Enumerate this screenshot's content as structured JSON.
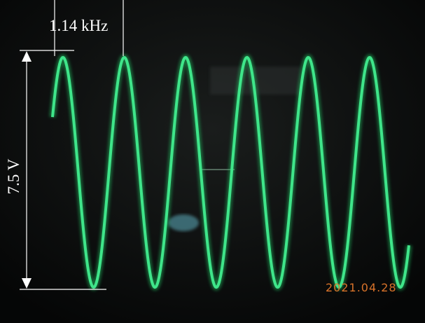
{
  "annotations": {
    "frequency": "1.14 kHz",
    "voltage": "7.5 V",
    "date": "2021.04.28"
  }
}
